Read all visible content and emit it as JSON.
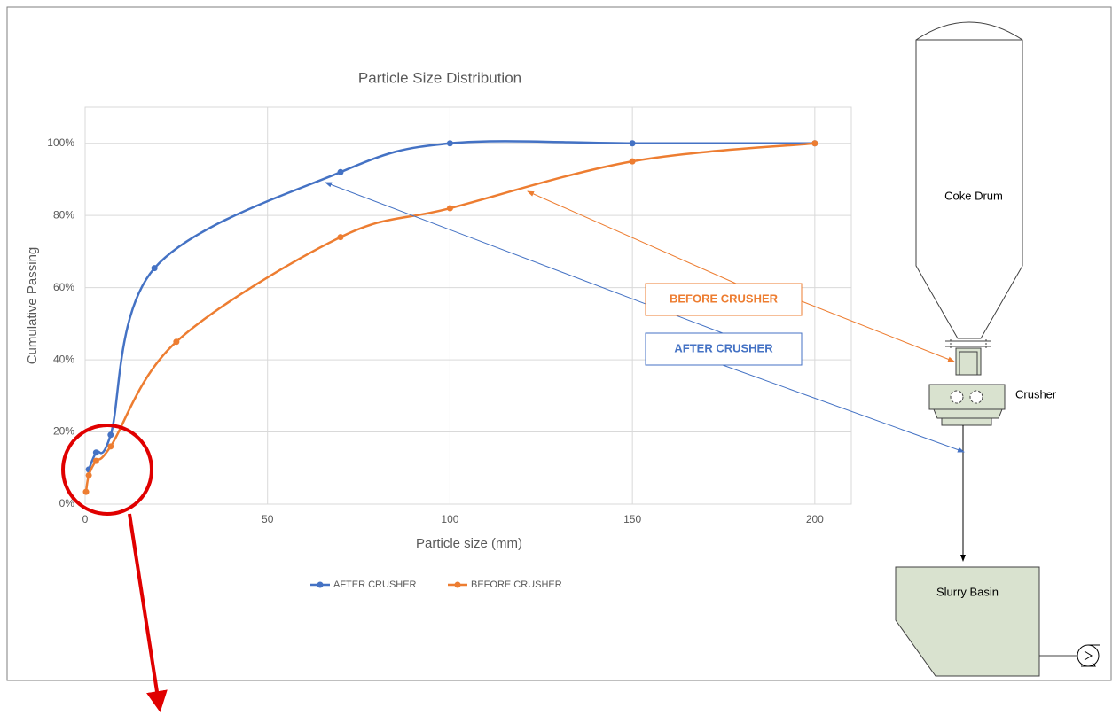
{
  "chart_data": {
    "type": "line",
    "title": "Particle Size Distribution",
    "x_label": "Particle size (mm)",
    "y_label": "Cumulative Passing",
    "xlim": [
      0,
      210
    ],
    "xticks": [
      0,
      50,
      100,
      150,
      200
    ],
    "ylim": [
      0,
      110
    ],
    "yticks": [
      {
        "value": 0,
        "label": "0%"
      },
      {
        "value": 20,
        "label": "20%"
      },
      {
        "value": 40,
        "label": "40%"
      },
      {
        "value": 60,
        "label": "60%"
      },
      {
        "value": 80,
        "label": "80%"
      },
      {
        "value": 100,
        "label": "100%"
      }
    ],
    "grid": true,
    "legend": "bottom",
    "smooth": true,
    "series": [
      {
        "name": "AFTER CRUSHER",
        "color": "#4472c4",
        "x": [
          1,
          3,
          7,
          19,
          70,
          100,
          150,
          200
        ],
        "values": [
          9.6,
          14.3,
          19.2,
          65.4,
          92,
          100,
          100,
          100
        ]
      },
      {
        "name": "BEFORE CRUSHER",
        "color": "#ed7d31",
        "x": [
          0.25,
          1,
          3,
          7,
          25,
          70,
          100,
          150,
          200
        ],
        "values": [
          3.4,
          8,
          12,
          16,
          45,
          74,
          82,
          95,
          100
        ]
      }
    ]
  },
  "diagram": {
    "drum": "Coke Drum",
    "crusher": "Crusher",
    "basin": "Slurry Basin"
  }
}
